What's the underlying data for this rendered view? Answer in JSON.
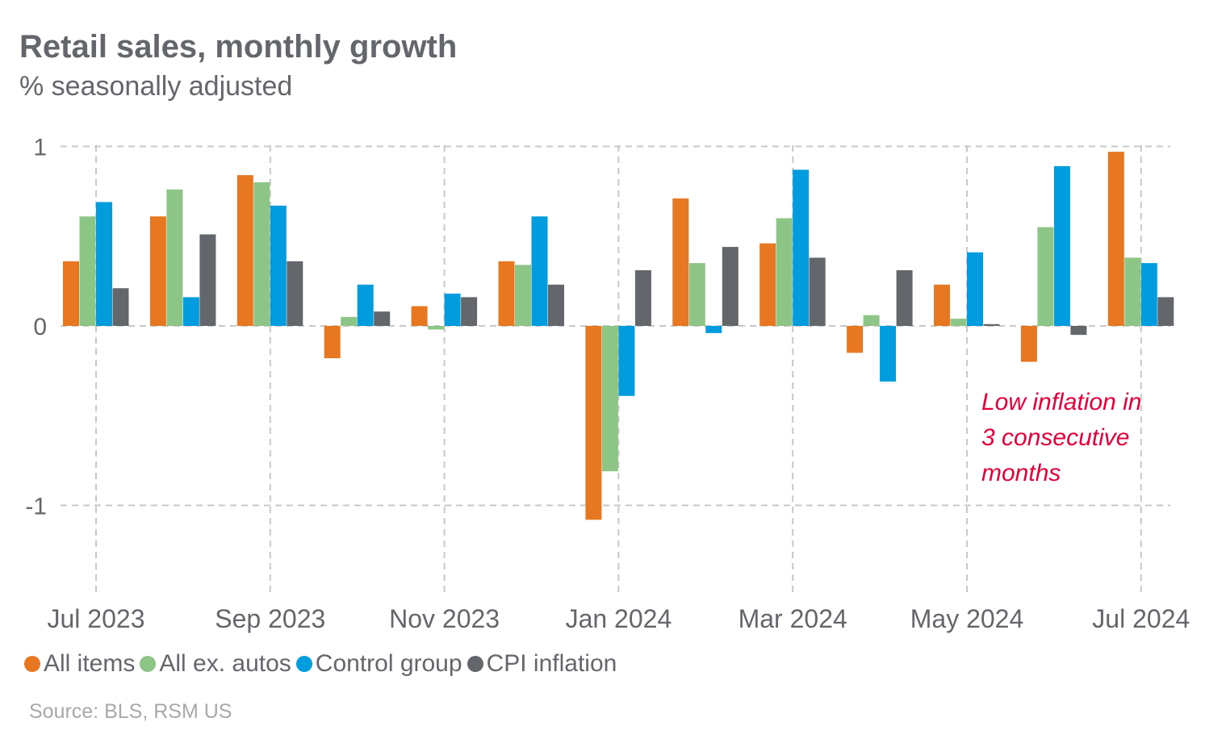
{
  "title": "Retail sales, monthly growth",
  "subtitle": "% seasonally adjusted",
  "source": "Source: BLS, RSM US",
  "annotation": [
    "Low inflation in",
    "3 consecutive",
    "months"
  ],
  "colors": {
    "All items": "#E87722",
    "All ex. autos": "#8DC587",
    "Control group": "#009CDE",
    "CPI inflation": "#63666A",
    "annotation": "#E4003B"
  },
  "chart_data": {
    "type": "bar",
    "title": "Retail sales, monthly growth",
    "subtitle": "% seasonally adjusted",
    "categories": [
      "Jul 2023",
      "Aug 2023",
      "Sep 2023",
      "Oct 2023",
      "Nov 2023",
      "Dec 2023",
      "Jan 2024",
      "Feb 2024",
      "Mar 2024",
      "Apr 2024",
      "May 2024",
      "Jun 2024",
      "Jul 2024"
    ],
    "x_tick_labels": [
      "Jul 2023",
      "Sep 2023",
      "Nov 2023",
      "Jan 2024",
      "Mar 2024",
      "May 2024",
      "Jul 2024"
    ],
    "y_ticks": [
      1,
      0,
      -1
    ],
    "ylim": [
      -1.5,
      1
    ],
    "grid": true,
    "legend_position": "bottom-left",
    "series": [
      {
        "name": "All items",
        "values": [
          0.36,
          0.61,
          0.84,
          -0.18,
          0.11,
          0.36,
          -1.08,
          0.71,
          0.46,
          -0.15,
          0.23,
          -0.2,
          0.97
        ]
      },
      {
        "name": "All ex. autos",
        "values": [
          0.61,
          0.76,
          0.8,
          0.05,
          -0.02,
          0.34,
          -0.81,
          0.35,
          0.6,
          0.06,
          0.04,
          0.55,
          0.38
        ]
      },
      {
        "name": "Control group",
        "values": [
          0.69,
          0.16,
          0.67,
          0.23,
          0.18,
          0.61,
          -0.39,
          -0.04,
          0.87,
          -0.31,
          0.41,
          0.89,
          0.35
        ]
      },
      {
        "name": "CPI inflation",
        "values": [
          0.21,
          0.51,
          0.36,
          0.08,
          0.16,
          0.23,
          0.31,
          0.44,
          0.38,
          0.31,
          0.01,
          -0.05,
          0.16
        ]
      }
    ]
  }
}
